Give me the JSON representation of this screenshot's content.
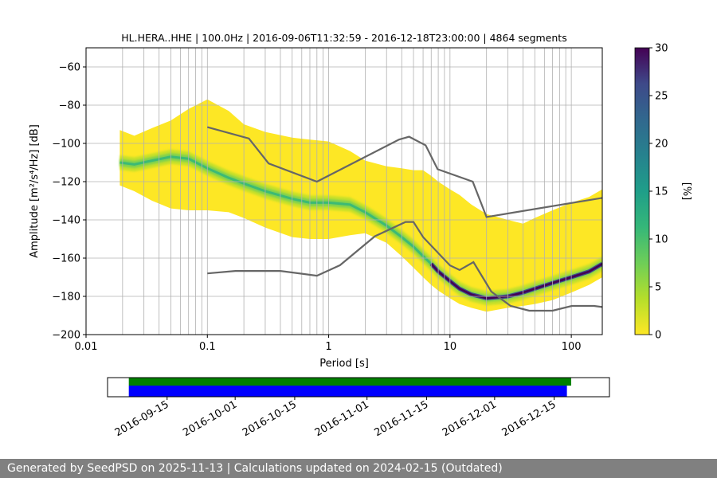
{
  "chart_data": [
    {
      "type": "heatmap",
      "title": "HL.HERA..HHE | 100.0Hz | 2016-09-06T11:32:59 - 2016-12-18T23:00:00 | 4864 segments",
      "xlabel": "Period [s]",
      "ylabel": "Amplitude [m²/s⁴/Hz] [dB]",
      "x_scale": "log",
      "xlim": [
        0.01,
        180
      ],
      "ylim": [
        -200,
        -50
      ],
      "x_ticks": [
        0.01,
        0.1,
        1,
        10,
        100
      ],
      "x_tick_labels": [
        "0.01",
        "0.1",
        "1",
        "10",
        "100"
      ],
      "y_ticks": [
        -200,
        -180,
        -160,
        -140,
        -120,
        -100,
        -80,
        -60
      ],
      "y_tick_labels": [
        "−200",
        "−180",
        "−160",
        "−140",
        "−120",
        "−100",
        "−80",
        "−60"
      ],
      "grid": true,
      "colormap": "viridis_r",
      "colorbar": {
        "label": "[%]",
        "range": [
          0,
          30
        ],
        "ticks": [
          0,
          5,
          10,
          15,
          20,
          25,
          30
        ]
      },
      "psd_profile": {
        "period": [
          0.019,
          0.025,
          0.035,
          0.05,
          0.07,
          0.1,
          0.15,
          0.2,
          0.3,
          0.5,
          0.7,
          1.0,
          1.5,
          2,
          3,
          4,
          5,
          6,
          7,
          8,
          10,
          12,
          15,
          20,
          30,
          40,
          50,
          70,
          100,
          140,
          180
        ],
        "mode_db": [
          -110,
          -111,
          -109,
          -107,
          -108,
          -113,
          -118,
          -121,
          -125,
          -129,
          -131,
          -131,
          -132,
          -136,
          -143,
          -149,
          -154,
          -159,
          -163,
          -167,
          -172,
          -176,
          -179,
          -181,
          -180,
          -178,
          -176,
          -173,
          -170,
          -167,
          -163
        ],
        "upper_db": [
          -93,
          -96,
          -92,
          -88,
          -82,
          -77,
          -83,
          -90,
          -94,
          -97,
          -98,
          -99,
          -104,
          -109,
          -112,
          -113,
          -114,
          -114,
          -117,
          -120,
          -124,
          -127,
          -132,
          -137,
          -140,
          -142,
          -139,
          -135,
          -131,
          -128,
          -124
        ],
        "lower_db": [
          -122,
          -125,
          -130,
          -134,
          -135,
          -135,
          -136,
          -139,
          -144,
          -149,
          -150,
          -150,
          -148,
          -147,
          -152,
          -159,
          -165,
          -170,
          -174,
          -177,
          -181,
          -184,
          -186,
          -188,
          -186,
          -185,
          -184,
          -182,
          -178,
          -174,
          -170
        ]
      },
      "noise_models": [
        {
          "period": [
            0.1,
            0.17,
            0.4,
            0.8,
            1.24,
            2.4,
            4.3,
            5.0,
            6.0,
            10.0,
            12.0,
            15.6,
            21.9,
            31.6,
            45.0,
            70.0,
            101.0,
            154.0,
            180.0
          ],
          "db": [
            -168,
            -166.7,
            -166.7,
            -169.2,
            -163.7,
            -148.6,
            -141.1,
            -141.1,
            -149.0,
            -163.8,
            -166.2,
            -162.1,
            -177.5,
            -185.0,
            -187.5,
            -187.5,
            -185.0,
            -185.0,
            -185.6
          ]
        },
        {
          "period": [
            0.1,
            0.22,
            0.32,
            0.8,
            3.8,
            4.6,
            6.3,
            7.9,
            15.4,
            20.0,
            180.0
          ],
          "db": [
            -91.5,
            -97.4,
            -110.5,
            -120.0,
            -98.0,
            -96.5,
            -101.0,
            -113.5,
            -120.0,
            -138.5,
            -128.5
          ]
        }
      ]
    },
    {
      "type": "timeline",
      "x_tick_labels": [
        "2016-09-15",
        "2016-10-01",
        "2016-10-15",
        "2016-11-01",
        "2016-11-15",
        "2016-12-01",
        "2016-12-15"
      ],
      "xlim": [
        "2016-09-01",
        "2016-12-28"
      ],
      "series": [
        {
          "color": "#008000",
          "start": "2016-09-06",
          "end": "2016-12-19"
        },
        {
          "color": "#0000ff",
          "start": "2016-09-06",
          "end": "2016-12-18"
        }
      ]
    }
  ],
  "footer": {
    "text": "Generated by SeedPSD on 2025-11-13 | Calculations updated on 2024-02-15 (Outdated)",
    "background": "#808080"
  }
}
